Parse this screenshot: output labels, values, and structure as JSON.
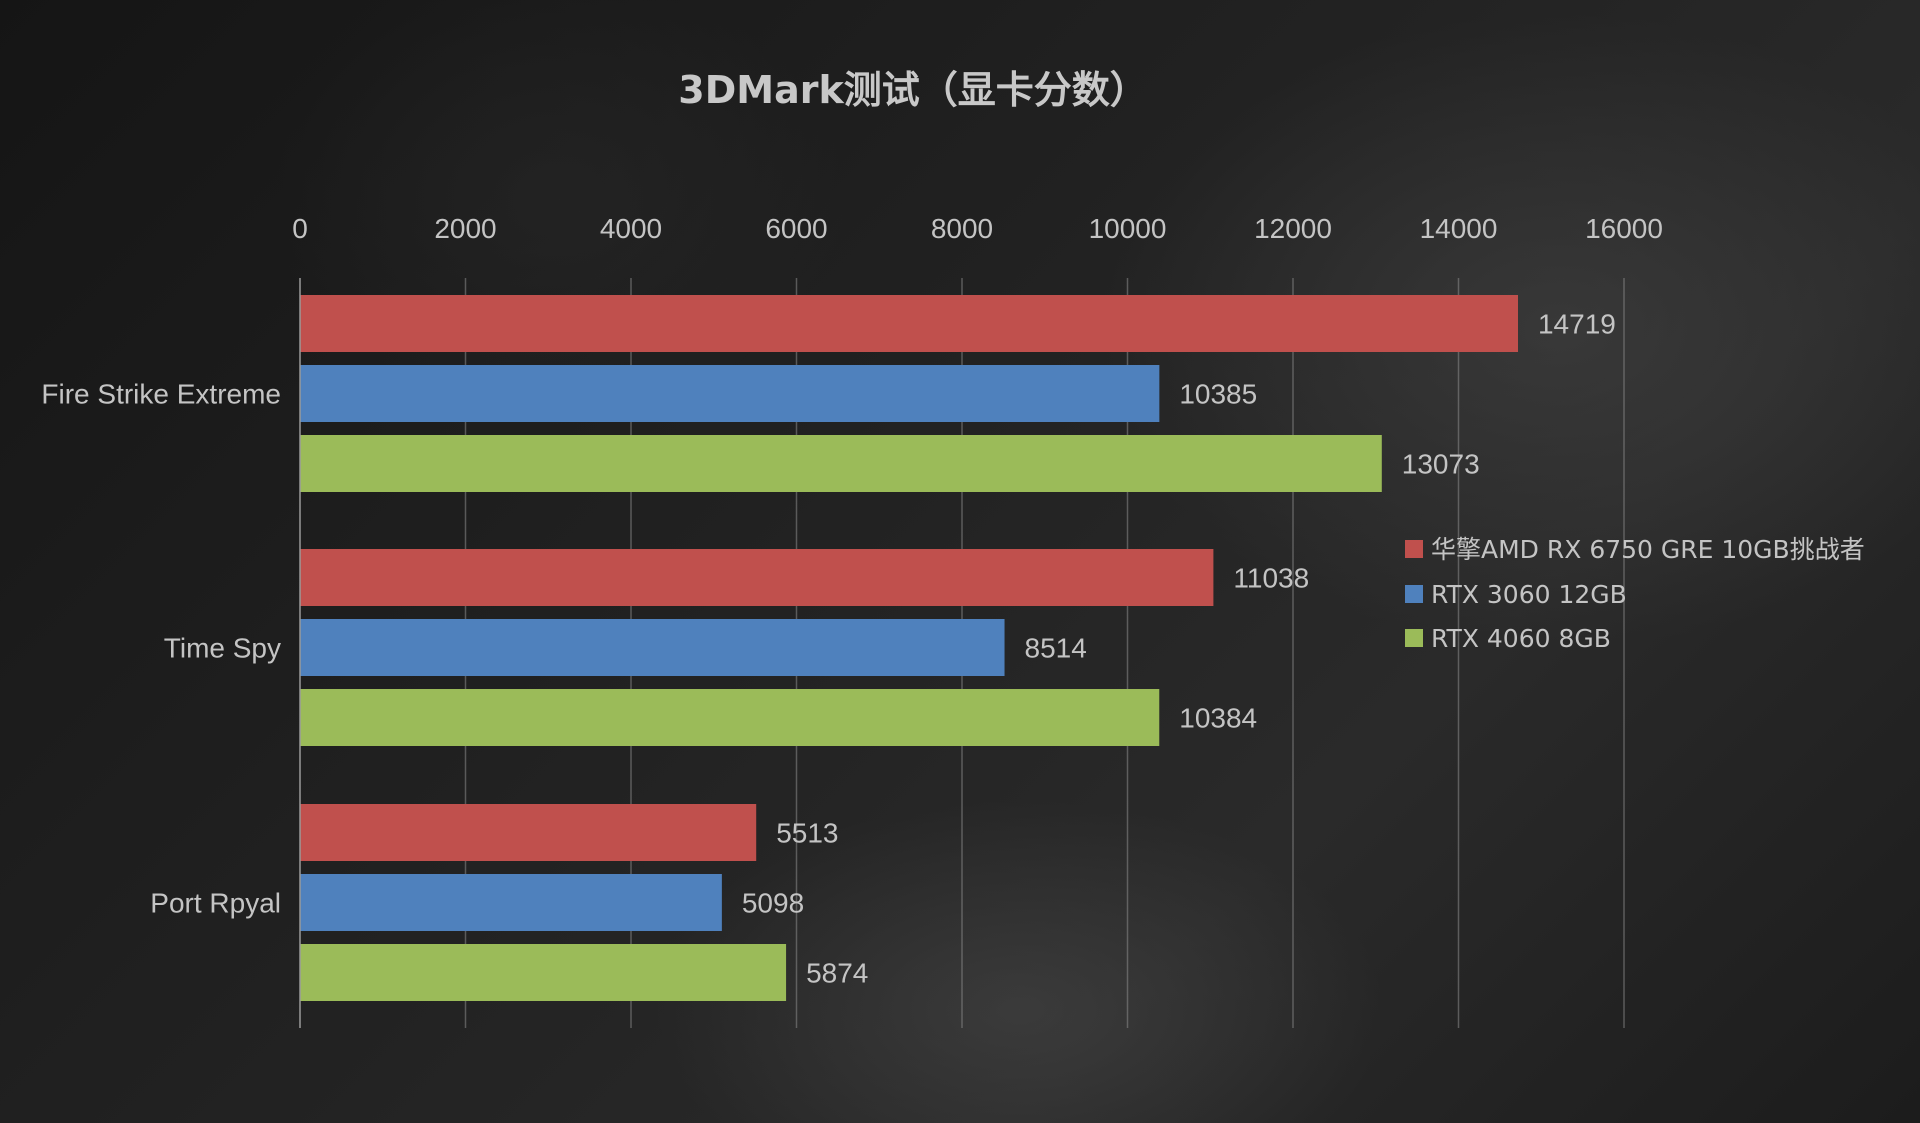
{
  "chart_data": {
    "type": "bar",
    "orientation": "horizontal",
    "title": "3DMark测试（显卡分数）",
    "categories": [
      "Fire Strike Extreme",
      "Time Spy",
      "Port Rpyal"
    ],
    "series": [
      {
        "name": "华擎AMD RX 6750 GRE 10GB挑战者",
        "color": "#C0504D",
        "values": [
          14719,
          11038,
          5513
        ]
      },
      {
        "name": "RTX 3060 12GB",
        "color": "#4F81BD",
        "values": [
          10385,
          8514,
          5098
        ]
      },
      {
        "name": "RTX 4060 8GB",
        "color": "#9BBB59",
        "values": [
          13073,
          10384,
          5874
        ]
      }
    ],
    "xlim": [
      0,
      16000
    ],
    "xticks": [
      "0",
      "2000",
      "4000",
      "6000",
      "8000",
      "10000",
      "12000",
      "14000",
      "16000"
    ],
    "xaxis_position": "top",
    "grid": true,
    "legend_position": "right",
    "data_labels": true
  }
}
